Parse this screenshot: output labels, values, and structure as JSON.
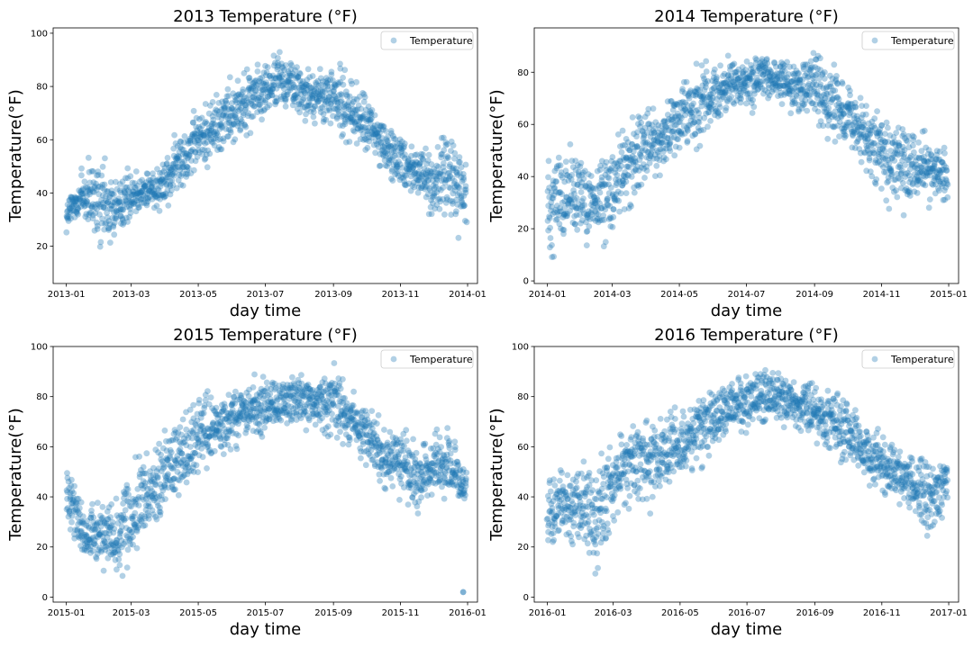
{
  "chart_data": [
    {
      "type": "scatter",
      "title": "2013 Temperature (°F)",
      "xlabel": "day time",
      "ylabel": "Temperature(°F)",
      "xlim": [
        "2012-12-20",
        "2014-01-10"
      ],
      "ylim": [
        6,
        102
      ],
      "x_ticks": [
        "2013-01",
        "2013-03",
        "2013-05",
        "2013-07",
        "2013-09",
        "2013-11",
        "2014-01"
      ],
      "y_ticks": [
        20,
        40,
        60,
        80,
        100
      ],
      "legend": {
        "entries": [
          "Temperature"
        ],
        "placement": "top-right"
      },
      "grid": false,
      "color": "#1f77b4",
      "series": [
        {
          "name": "Temperature",
          "x": [
            "2013-01-01",
            "2013-01-15",
            "2013-02-01",
            "2013-02-15",
            "2013-03-01",
            "2013-03-15",
            "2013-04-01",
            "2013-04-15",
            "2013-05-01",
            "2013-05-15",
            "2013-06-01",
            "2013-06-15",
            "2013-07-01",
            "2013-07-15",
            "2013-08-01",
            "2013-08-15",
            "2013-09-01",
            "2013-09-15",
            "2013-10-01",
            "2013-10-15",
            "2013-11-01",
            "2013-11-15",
            "2013-12-01",
            "2013-12-15",
            "2013-12-31"
          ],
          "y_min": [
            22,
            24,
            11,
            18,
            28,
            30,
            32,
            38,
            45,
            48,
            55,
            60,
            65,
            70,
            66,
            64,
            60,
            55,
            52,
            45,
            40,
            35,
            28,
            22,
            22
          ],
          "y_max": [
            40,
            55,
            58,
            50,
            52,
            52,
            56,
            68,
            75,
            80,
            88,
            90,
            92,
            96,
            92,
            88,
            92,
            88,
            80,
            72,
            65,
            62,
            58,
            70,
            55
          ]
        }
      ]
    },
    {
      "type": "scatter",
      "title": "2014 Temperature (°F)",
      "xlabel": "day time",
      "ylabel": "Temperature(°F)",
      "xlim": [
        "2013-12-20",
        "2015-01-10"
      ],
      "ylim": [
        -1,
        97
      ],
      "x_ticks": [
        "2014-01",
        "2014-03",
        "2014-05",
        "2014-07",
        "2014-09",
        "2014-11",
        "2015-01"
      ],
      "y_ticks": [
        0,
        20,
        40,
        60,
        80
      ],
      "legend": {
        "entries": [
          "Temperature"
        ],
        "placement": "top-right"
      },
      "grid": false,
      "color": "#1f77b4",
      "series": [
        {
          "name": "Temperature",
          "x": [
            "2014-01-01",
            "2014-01-15",
            "2014-02-01",
            "2014-02-15",
            "2014-03-01",
            "2014-03-15",
            "2014-04-01",
            "2014-04-15",
            "2014-05-01",
            "2014-05-15",
            "2014-06-01",
            "2014-06-15",
            "2014-07-01",
            "2014-07-15",
            "2014-08-01",
            "2014-08-15",
            "2014-09-01",
            "2014-09-15",
            "2014-10-01",
            "2014-10-15",
            "2014-11-01",
            "2014-11-15",
            "2014-12-01",
            "2014-12-15",
            "2014-12-31"
          ],
          "y_min": [
            4,
            8,
            8,
            10,
            12,
            22,
            32,
            35,
            45,
            48,
            55,
            60,
            62,
            65,
            65,
            62,
            60,
            52,
            48,
            40,
            28,
            22,
            25,
            28,
            26
          ],
          "y_max": [
            55,
            57,
            52,
            50,
            60,
            65,
            72,
            75,
            82,
            85,
            88,
            89,
            90,
            89,
            88,
            86,
            92,
            84,
            80,
            72,
            68,
            66,
            60,
            60,
            52
          ]
        }
      ]
    },
    {
      "type": "scatter",
      "title": "2015 Temperature (°F)",
      "xlabel": "day time",
      "ylabel": "Temperature(°F)",
      "xlim": [
        "2014-12-20",
        "2016-01-10"
      ],
      "ylim": [
        -2,
        100
      ],
      "x_ticks": [
        "2015-01",
        "2015-03",
        "2015-05",
        "2015-07",
        "2015-09",
        "2015-11",
        "2016-01"
      ],
      "y_ticks": [
        0,
        20,
        40,
        60,
        80,
        100
      ],
      "legend": {
        "entries": [
          "Temperature"
        ],
        "placement": "top-right"
      },
      "grid": false,
      "color": "#1f77b4",
      "series": [
        {
          "name": "Temperature",
          "x": [
            "2015-01-01",
            "2015-01-15",
            "2015-02-01",
            "2015-02-15",
            "2015-03-01",
            "2015-03-15",
            "2015-04-01",
            "2015-04-15",
            "2015-05-01",
            "2015-05-15",
            "2015-06-01",
            "2015-06-15",
            "2015-07-01",
            "2015-07-15",
            "2015-08-01",
            "2015-08-15",
            "2015-09-01",
            "2015-09-15",
            "2015-10-01",
            "2015-10-15",
            "2015-11-01",
            "2015-11-15",
            "2015-12-01",
            "2015-12-15",
            "2015-12-31"
          ],
          "y_min": [
            25,
            8,
            10,
            2,
            5,
            22,
            28,
            35,
            45,
            48,
            55,
            60,
            62,
            65,
            66,
            64,
            62,
            55,
            50,
            42,
            38,
            32,
            35,
            34,
            36
          ],
          "y_max": [
            56,
            44,
            42,
            42,
            58,
            60,
            70,
            78,
            82,
            85,
            86,
            88,
            92,
            90,
            92,
            90,
            96,
            86,
            80,
            72,
            70,
            65,
            68,
            72,
            50
          ]
        }
      ],
      "outliers": [
        {
          "x": "2015-12-28",
          "y": 2
        }
      ]
    },
    {
      "type": "scatter",
      "title": "2016 Temperature (°F)",
      "xlabel": "day time",
      "ylabel": "Temperature(°F)",
      "xlim": [
        "2015-12-20",
        "2017-01-10"
      ],
      "ylim": [
        -2,
        100
      ],
      "x_ticks": [
        "2016-01",
        "2016-03",
        "2016-05",
        "2016-07",
        "2016-09",
        "2016-11",
        "2017-01"
      ],
      "y_ticks": [
        0,
        20,
        40,
        60,
        80,
        100
      ],
      "legend": {
        "entries": [
          "Temperature"
        ],
        "placement": "top-right"
      },
      "grid": false,
      "color": "#1f77b4",
      "series": [
        {
          "name": "Temperature",
          "x": [
            "2016-01-01",
            "2016-01-15",
            "2016-02-01",
            "2016-02-15",
            "2016-03-01",
            "2016-03-15",
            "2016-04-01",
            "2016-04-15",
            "2016-05-01",
            "2016-05-15",
            "2016-06-01",
            "2016-06-15",
            "2016-07-01",
            "2016-07-15",
            "2016-08-01",
            "2016-08-15",
            "2016-09-01",
            "2016-09-15",
            "2016-10-01",
            "2016-10-15",
            "2016-11-01",
            "2016-11-15",
            "2016-12-01",
            "2016-12-15",
            "2016-12-31"
          ],
          "y_min": [
            12,
            20,
            18,
            0,
            25,
            30,
            32,
            38,
            42,
            45,
            55,
            62,
            65,
            68,
            66,
            65,
            60,
            55,
            48,
            42,
            38,
            36,
            32,
            18,
            34
          ],
          "y_max": [
            58,
            55,
            58,
            60,
            65,
            76,
            80,
            78,
            80,
            85,
            88,
            90,
            92,
            96,
            94,
            90,
            90,
            86,
            82,
            75,
            68,
            62,
            58,
            58,
            60
          ]
        }
      ]
    }
  ]
}
